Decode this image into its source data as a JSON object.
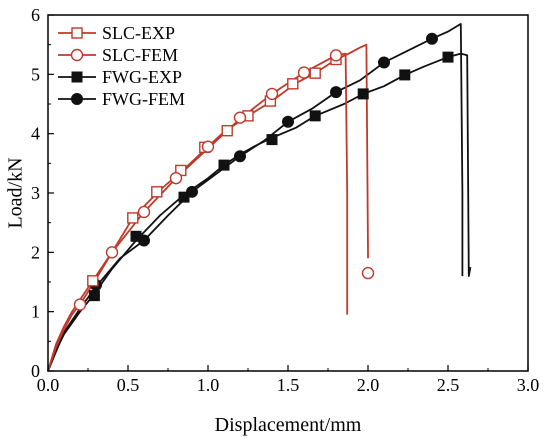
{
  "chart_data": {
    "type": "line",
    "xlabel": "Displacement/mm",
    "ylabel": "Load/kN",
    "xlim": [
      0,
      3.0
    ],
    "ylim": [
      0,
      6
    ],
    "x_ticks": [
      "0.0",
      "0.5",
      "1.0",
      "1.5",
      "2.0",
      "2.5",
      "3.0"
    ],
    "y_ticks": [
      "0",
      "1",
      "2",
      "3",
      "4",
      "5",
      "6"
    ],
    "grid": false,
    "legend_position": "top-left",
    "series": [
      {
        "name": "SLC-EXP",
        "color": "#c0392b",
        "marker": "open-square",
        "curve": [
          [
            0,
            0
          ],
          [
            0.05,
            0.45
          ],
          [
            0.1,
            0.75
          ],
          [
            0.15,
            1.0
          ],
          [
            0.2,
            1.2
          ],
          [
            0.28,
            1.52
          ],
          [
            0.4,
            2.0
          ],
          [
            0.53,
            2.58
          ],
          [
            0.7,
            3.05
          ],
          [
            0.85,
            3.4
          ],
          [
            1.0,
            3.78
          ],
          [
            1.1,
            4.03
          ],
          [
            1.25,
            4.3
          ],
          [
            1.4,
            4.55
          ],
          [
            1.55,
            4.85
          ],
          [
            1.67,
            5.02
          ],
          [
            1.8,
            5.25
          ],
          [
            1.88,
            5.35
          ],
          [
            1.95,
            5.45
          ],
          [
            1.99,
            5.5
          ],
          [
            2.0,
            2.0
          ],
          [
            2.0,
            1.9
          ]
        ],
        "markers": [
          [
            0.28,
            1.52
          ],
          [
            0.53,
            2.58
          ],
          [
            0.68,
            3.02
          ],
          [
            0.83,
            3.38
          ],
          [
            0.98,
            3.77
          ],
          [
            1.12,
            4.05
          ],
          [
            1.25,
            4.3
          ],
          [
            1.39,
            4.55
          ],
          [
            1.53,
            4.84
          ],
          [
            1.67,
            5.02
          ],
          [
            1.8,
            5.25
          ]
        ]
      },
      {
        "name": "SLC-FEM",
        "color": "#c0392b",
        "marker": "open-circle",
        "curve": [
          [
            0,
            0
          ],
          [
            0.05,
            0.4
          ],
          [
            0.1,
            0.7
          ],
          [
            0.15,
            0.95
          ],
          [
            0.2,
            1.12
          ],
          [
            0.3,
            1.55
          ],
          [
            0.4,
            2.0
          ],
          [
            0.6,
            2.68
          ],
          [
            0.8,
            3.25
          ],
          [
            1.0,
            3.75
          ],
          [
            1.2,
            4.25
          ],
          [
            1.4,
            4.67
          ],
          [
            1.6,
            5.03
          ],
          [
            1.8,
            5.32
          ],
          [
            1.86,
            5.35
          ],
          [
            1.87,
            3.0
          ],
          [
            1.87,
            0.95
          ]
        ],
        "markers": [
          [
            0.2,
            1.12
          ],
          [
            0.4,
            2.0
          ],
          [
            0.6,
            2.68
          ],
          [
            0.8,
            3.25
          ],
          [
            1.0,
            3.78
          ],
          [
            1.2,
            4.27
          ],
          [
            1.4,
            4.67
          ],
          [
            1.6,
            5.03
          ],
          [
            1.8,
            5.32
          ],
          [
            2.0,
            1.65
          ]
        ]
      },
      {
        "name": "FWG-EXP",
        "color": "#111111",
        "marker": "filled-square",
        "curve": [
          [
            0,
            0
          ],
          [
            0.05,
            0.35
          ],
          [
            0.1,
            0.62
          ],
          [
            0.2,
            1.0
          ],
          [
            0.29,
            1.3
          ],
          [
            0.4,
            1.72
          ],
          [
            0.55,
            2.2
          ],
          [
            0.7,
            2.62
          ],
          [
            0.85,
            2.97
          ],
          [
            1.0,
            3.25
          ],
          [
            1.1,
            3.47
          ],
          [
            1.2,
            3.65
          ],
          [
            1.3,
            3.8
          ],
          [
            1.4,
            3.93
          ],
          [
            1.55,
            4.1
          ],
          [
            1.67,
            4.3
          ],
          [
            1.85,
            4.5
          ],
          [
            1.97,
            4.67
          ],
          [
            2.1,
            4.8
          ],
          [
            2.23,
            4.99
          ],
          [
            2.35,
            5.13
          ],
          [
            2.5,
            5.29
          ],
          [
            2.58,
            5.35
          ],
          [
            2.62,
            5.32
          ],
          [
            2.63,
            1.6
          ],
          [
            2.64,
            1.75
          ]
        ],
        "markers": [
          [
            0.29,
            1.27
          ],
          [
            0.55,
            2.27
          ],
          [
            0.85,
            2.93
          ],
          [
            1.1,
            3.47
          ],
          [
            1.4,
            3.9
          ],
          [
            1.67,
            4.3
          ],
          [
            1.97,
            4.67
          ],
          [
            2.23,
            4.99
          ],
          [
            2.5,
            5.29
          ]
        ]
      },
      {
        "name": "FWG-FEM",
        "color": "#111111",
        "marker": "filled-circle",
        "curve": [
          [
            0,
            0
          ],
          [
            0.1,
            0.65
          ],
          [
            0.2,
            1.05
          ],
          [
            0.3,
            1.42
          ],
          [
            0.45,
            1.9
          ],
          [
            0.6,
            2.2
          ],
          [
            0.75,
            2.62
          ],
          [
            0.9,
            3.02
          ],
          [
            1.05,
            3.32
          ],
          [
            1.2,
            3.62
          ],
          [
            1.35,
            3.88
          ],
          [
            1.5,
            4.2
          ],
          [
            1.65,
            4.42
          ],
          [
            1.8,
            4.7
          ],
          [
            1.95,
            4.9
          ],
          [
            2.1,
            5.2
          ],
          [
            2.25,
            5.4
          ],
          [
            2.4,
            5.6
          ],
          [
            2.5,
            5.72
          ],
          [
            2.58,
            5.85
          ],
          [
            2.59,
            3.0
          ],
          [
            2.59,
            1.6
          ]
        ],
        "markers": [
          [
            0.3,
            1.45
          ],
          [
            0.6,
            2.2
          ],
          [
            0.9,
            3.02
          ],
          [
            1.2,
            3.62
          ],
          [
            1.5,
            4.2
          ],
          [
            1.8,
            4.7
          ],
          [
            2.1,
            5.2
          ],
          [
            2.4,
            5.6
          ]
        ]
      }
    ]
  }
}
